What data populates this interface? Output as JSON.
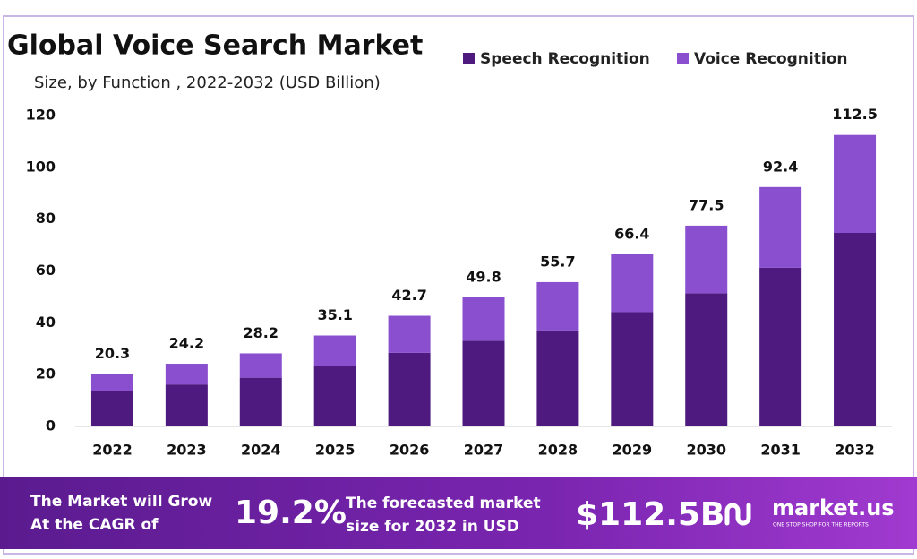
{
  "chart_data": {
    "type": "stacked_bar",
    "title": "Global Voice Search Market",
    "subtitle": "Size, by Function , 2022-2032 (USD Billion)",
    "categories": [
      "2022",
      "2023",
      "2024",
      "2025",
      "2026",
      "2027",
      "2028",
      "2029",
      "2030",
      "2031",
      "2032"
    ],
    "series": [
      {
        "name": "Speech Recognition",
        "color": "#4f1a7f",
        "values": [
          13.5,
          16.2,
          18.8,
          23.4,
          28.4,
          33.1,
          37.1,
          44.1,
          51.4,
          61.3,
          74.7
        ]
      },
      {
        "name": "Voice Recognition",
        "color": "#8a4fcf",
        "values": [
          6.8,
          8.0,
          9.4,
          11.7,
          14.3,
          16.7,
          18.6,
          22.3,
          26.1,
          31.1,
          37.8
        ]
      }
    ],
    "totals": [
      20.3,
      24.2,
      28.2,
      35.1,
      42.7,
      49.8,
      55.7,
      66.4,
      77.5,
      92.4,
      112.5
    ],
    "ylim": [
      0,
      120
    ],
    "yticks": [
      0,
      20,
      40,
      60,
      80,
      100,
      120
    ],
    "grid": false
  },
  "banner": {
    "cagr_text": [
      "The Market will Grow",
      "At the CAGR of"
    ],
    "cagr": "19.2%",
    "forecast_text": [
      "The forecasted market",
      "size for 2032 in USD"
    ],
    "forecast": "$112.5B",
    "logo": "market.us",
    "tagline": "ONE STOP SHOP FOR THE REPORTS"
  }
}
